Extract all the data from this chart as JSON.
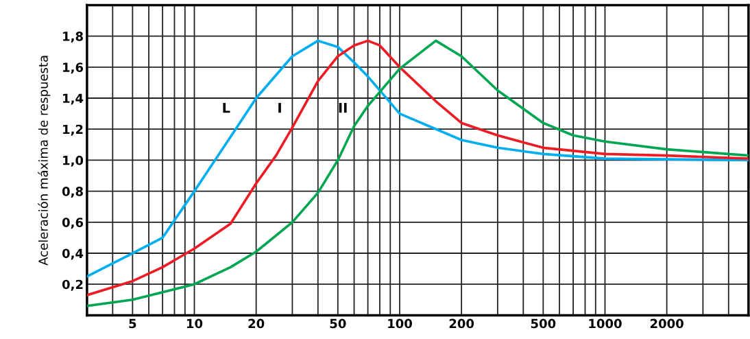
{
  "chart_data": {
    "type": "line",
    "ylabel": "Aceleración máxima de respuesta",
    "log": "x",
    "xlim": [
      3,
      5000
    ],
    "ylim": [
      0,
      2.0
    ],
    "xticks": [
      {
        "value": 3,
        "label": null
      },
      {
        "value": 4,
        "label": null
      },
      5,
      {
        "value": 6,
        "label": null
      },
      {
        "value": 7,
        "label": null
      },
      {
        "value": 8,
        "label": null
      },
      {
        "value": 9,
        "label": null
      },
      10,
      20,
      {
        "value": 30,
        "label": null
      },
      {
        "value": 40,
        "label": null
      },
      50,
      {
        "value": 60,
        "label": null
      },
      {
        "value": 70,
        "label": null
      },
      {
        "value": 80,
        "label": null
      },
      {
        "value": 90,
        "label": null
      },
      100,
      200,
      {
        "value": 300,
        "label": null
      },
      {
        "value": 400,
        "label": null
      },
      500,
      {
        "value": 600,
        "label": null
      },
      {
        "value": 700,
        "label": null
      },
      {
        "value": 800,
        "label": null
      },
      {
        "value": 900,
        "label": null
      },
      1000,
      2000,
      {
        "value": 3000,
        "label": null
      },
      {
        "value": 4000,
        "label": null
      }
    ],
    "yticks": [
      {
        "value": 0.2,
        "label": "0,2"
      },
      {
        "value": 0.4,
        "label": "0,4"
      },
      {
        "value": 0.6,
        "label": "0,6"
      },
      {
        "value": 0.8,
        "label": "0,8"
      },
      {
        "value": 1.0,
        "label": "1,0"
      },
      {
        "value": 1.2,
        "label": "1,2"
      },
      {
        "value": 1.4,
        "label": "1,4"
      },
      {
        "value": 1.6,
        "label": "1,6"
      },
      {
        "value": 1.8,
        "label": "1,8"
      }
    ],
    "grid": true,
    "legend": false,
    "marker": "none",
    "line_style": "solid",
    "series": [
      {
        "name": "L",
        "color": "#00aeef",
        "x": [
          3,
          5,
          7,
          10,
          15,
          20,
          30,
          40,
          50,
          60,
          70,
          100,
          200,
          300,
          500,
          1000,
          5000
        ],
        "values": [
          0.25,
          0.4,
          0.5,
          0.8,
          1.15,
          1.4,
          1.67,
          1.77,
          1.73,
          1.63,
          1.54,
          1.3,
          1.13,
          1.08,
          1.04,
          1.01,
          1.0
        ]
      },
      {
        "name": "I",
        "color": "#ed1c24",
        "x": [
          3,
          5,
          7,
          10,
          15,
          20,
          25,
          30,
          40,
          50,
          60,
          70,
          80,
          100,
          150,
          200,
          300,
          500,
          1000,
          2000,
          5000
        ],
        "values": [
          0.13,
          0.22,
          0.31,
          0.43,
          0.59,
          0.85,
          1.03,
          1.21,
          1.51,
          1.67,
          1.74,
          1.77,
          1.74,
          1.6,
          1.38,
          1.24,
          1.16,
          1.08,
          1.04,
          1.03,
          1.01
        ]
      },
      {
        "name": "II",
        "color": "#00a651",
        "x": [
          3,
          5,
          10,
          15,
          20,
          30,
          40,
          50,
          60,
          70,
          100,
          150,
          200,
          300,
          500,
          700,
          1000,
          2000,
          5000
        ],
        "values": [
          0.06,
          0.1,
          0.2,
          0.31,
          0.41,
          0.6,
          0.79,
          1.0,
          1.22,
          1.35,
          1.59,
          1.77,
          1.67,
          1.45,
          1.24,
          1.16,
          1.12,
          1.07,
          1.03
        ]
      }
    ]
  }
}
